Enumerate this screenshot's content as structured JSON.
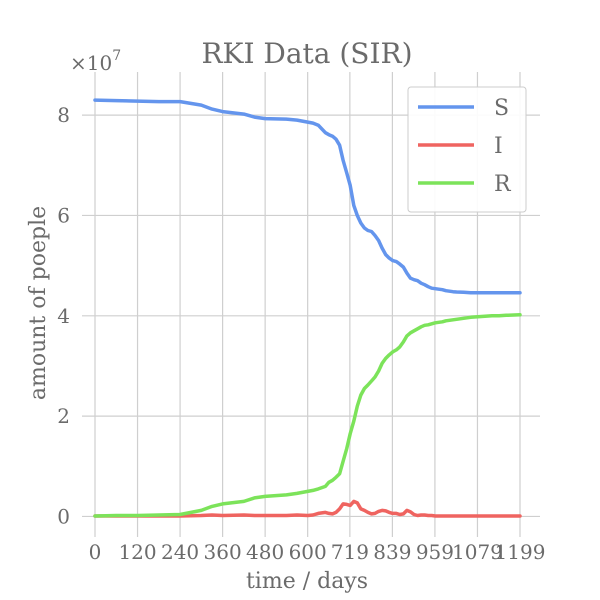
{
  "chart_data": {
    "type": "line",
    "title": "RKI Data (SIR)",
    "xlabel": "time / days",
    "ylabel": "amount of poeple",
    "y_multiplier_label": "×10",
    "y_multiplier_exp": "7",
    "xlim": [
      0,
      1199
    ],
    "ylim": [
      -0.25,
      8.7
    ],
    "x_ticks": [
      0,
      120,
      240,
      360,
      480,
      600,
      719,
      839,
      959,
      1079,
      1199
    ],
    "x_tick_labels": [
      "0",
      "120",
      "240",
      "360",
      "480",
      "600",
      "719",
      "839",
      "959",
      "1079",
      "1199"
    ],
    "y_ticks": [
      0,
      2,
      4,
      6,
      8
    ],
    "y_tick_labels": [
      "0",
      "2",
      "4",
      "6",
      "8"
    ],
    "grid": true,
    "legend_position": "top-right",
    "x": [
      0,
      60,
      120,
      180,
      240,
      300,
      330,
      360,
      420,
      450,
      480,
      540,
      570,
      600,
      615,
      630,
      650,
      660,
      670,
      680,
      690,
      700,
      710,
      720,
      730,
      740,
      750,
      760,
      770,
      780,
      790,
      800,
      810,
      820,
      830,
      840,
      850,
      860,
      870,
      880,
      890,
      900,
      910,
      920,
      930,
      940,
      950,
      960,
      970,
      980,
      990,
      1000,
      1010,
      1020,
      1040,
      1060,
      1080,
      1100,
      1120,
      1140,
      1160,
      1199
    ],
    "series": [
      {
        "name": "S",
        "color": "#6495ed",
        "values": [
          8.3,
          8.29,
          8.28,
          8.27,
          8.27,
          8.2,
          8.12,
          8.07,
          8.02,
          7.96,
          7.93,
          7.92,
          7.9,
          7.86,
          7.84,
          7.8,
          7.65,
          7.61,
          7.58,
          7.52,
          7.4,
          7.1,
          6.85,
          6.6,
          6.2,
          6.0,
          5.85,
          5.75,
          5.7,
          5.68,
          5.6,
          5.5,
          5.35,
          5.22,
          5.15,
          5.1,
          5.08,
          5.03,
          4.97,
          4.85,
          4.75,
          4.72,
          4.7,
          4.65,
          4.62,
          4.58,
          4.55,
          4.54,
          4.53,
          4.52,
          4.5,
          4.49,
          4.48,
          4.475,
          4.47,
          4.46,
          4.46,
          4.46,
          4.46,
          4.46,
          4.46,
          4.46
        ]
      },
      {
        "name": "I",
        "color": "#ef6460",
        "values": [
          0.01,
          0.01,
          0.01,
          0.01,
          0.01,
          0.02,
          0.03,
          0.02,
          0.03,
          0.02,
          0.02,
          0.02,
          0.03,
          0.02,
          0.03,
          0.06,
          0.08,
          0.06,
          0.05,
          0.08,
          0.15,
          0.25,
          0.24,
          0.22,
          0.3,
          0.27,
          0.15,
          0.12,
          0.08,
          0.05,
          0.06,
          0.1,
          0.12,
          0.11,
          0.08,
          0.06,
          0.06,
          0.04,
          0.05,
          0.12,
          0.09,
          0.04,
          0.02,
          0.03,
          0.03,
          0.02,
          0.02,
          0.01,
          0.01,
          0.01,
          0.01,
          0.01,
          0.01,
          0.01,
          0.01,
          0.01,
          0.01,
          0.01,
          0.01,
          0.01,
          0.01,
          0.01
        ]
      },
      {
        "name": "R",
        "color": "#7ce35a",
        "values": [
          0.01,
          0.02,
          0.02,
          0.03,
          0.04,
          0.12,
          0.2,
          0.25,
          0.3,
          0.37,
          0.4,
          0.43,
          0.46,
          0.5,
          0.52,
          0.55,
          0.6,
          0.68,
          0.72,
          0.78,
          0.85,
          1.1,
          1.35,
          1.65,
          1.9,
          2.2,
          2.42,
          2.55,
          2.62,
          2.7,
          2.78,
          2.9,
          3.05,
          3.15,
          3.22,
          3.28,
          3.32,
          3.38,
          3.48,
          3.6,
          3.66,
          3.7,
          3.74,
          3.78,
          3.81,
          3.82,
          3.84,
          3.86,
          3.87,
          3.88,
          3.9,
          3.91,
          3.92,
          3.93,
          3.95,
          3.97,
          3.98,
          3.99,
          4.0,
          4.0,
          4.01,
          4.02
        ]
      }
    ]
  }
}
